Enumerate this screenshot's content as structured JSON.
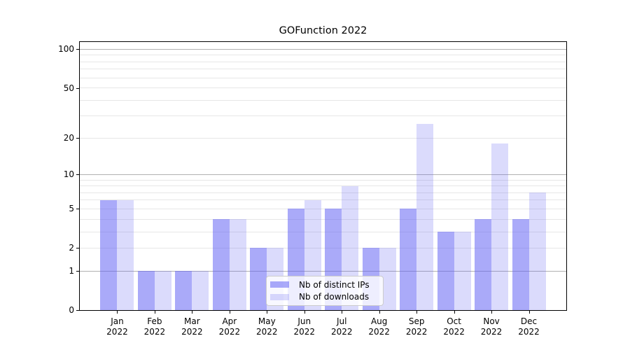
{
  "figure": {
    "title": "GOFunction 2022"
  },
  "chart_data": {
    "type": "bar",
    "title": "GOFunction 2022",
    "categories": [
      "Jan",
      "Feb",
      "Mar",
      "Apr",
      "May",
      "Jun",
      "Jul",
      "Aug",
      "Sep",
      "Oct",
      "Nov",
      "Dec"
    ],
    "category_year": "2022",
    "series": [
      {
        "name": "Nb of distinct IPs",
        "values": [
          6,
          1,
          1,
          4,
          2,
          5,
          5,
          2,
          5,
          3,
          4,
          4
        ],
        "color": "rgba(100,100,244,0.55)"
      },
      {
        "name": "Nb of downloads",
        "values": [
          6,
          1,
          1,
          4,
          2,
          6,
          8,
          2,
          26,
          3,
          18,
          7
        ],
        "color": "rgba(100,100,244,0.23)"
      }
    ],
    "xlabel": "",
    "ylabel": "",
    "yscale": "log1p",
    "ylim": [
      0,
      114
    ],
    "y_ticks_labeled": [
      0,
      1,
      2,
      5,
      10,
      20,
      50,
      100
    ],
    "gridlines_major": [
      1,
      10,
      100
    ],
    "gridlines_minor": [
      2,
      3,
      4,
      5,
      6,
      7,
      8,
      9,
      20,
      30,
      40,
      50,
      60,
      70,
      80,
      90
    ],
    "grid": true,
    "legend_position": "lower center"
  },
  "colors": {
    "grid_major": "#b0b0b0",
    "grid_minor": "#e7e7e7",
    "axis_frame": "#000000",
    "text": "#000000",
    "legend_border": "#cccccc",
    "legend_background": "rgba(255,255,255,0.8)"
  }
}
